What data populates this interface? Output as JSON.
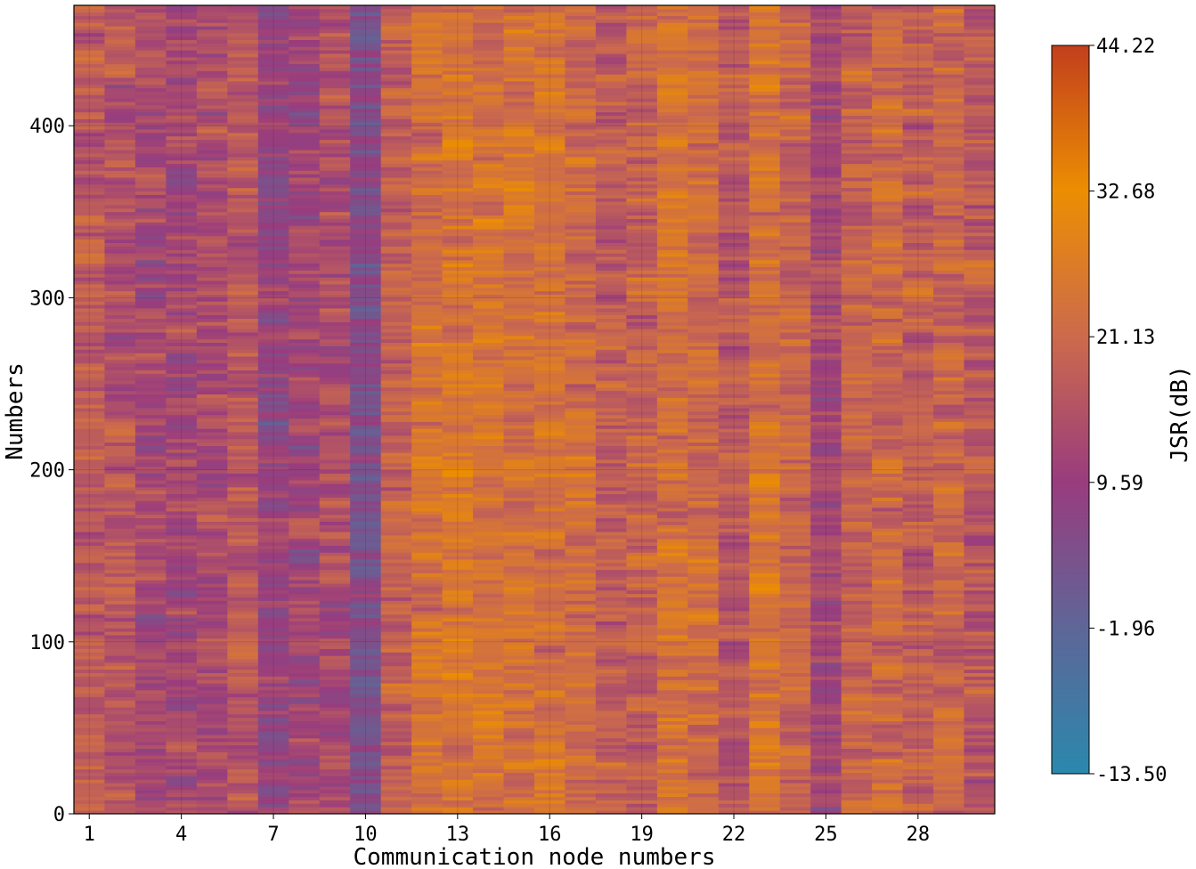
{
  "chart_data": {
    "type": "heatmap",
    "title": "",
    "xlabel": "Communication node numbers",
    "ylabel": "Numbers",
    "x_ticks": [
      "1",
      "4",
      "7",
      "10",
      "13",
      "16",
      "19",
      "22",
      "25",
      "28"
    ],
    "x_tick_values": [
      1,
      4,
      7,
      10,
      13,
      16,
      19,
      22,
      25,
      28
    ],
    "xlim": [
      0.5,
      30.5
    ],
    "y_ticks": [
      "0",
      "100",
      "200",
      "300",
      "400"
    ],
    "y_tick_values": [
      0,
      100,
      200,
      300,
      400
    ],
    "ylim": [
      0,
      470
    ],
    "grid": true,
    "node_count": 30,
    "sample_count": 470,
    "node_mean_jsr_db": [
      17.5,
      15.5,
      12.5,
      12.0,
      13.5,
      15.5,
      9.5,
      11.0,
      14.0,
      5.0,
      19.0,
      24.0,
      25.0,
      24.5,
      24.0,
      23.5,
      22.0,
      18.0,
      19.5,
      24.0,
      22.0,
      17.5,
      24.5,
      20.5,
      12.5,
      19.5,
      21.0,
      18.0,
      20.5,
      17.0
    ],
    "colorbar": {
      "label": "JSR(dB)",
      "min": -13.5,
      "max": 44.22,
      "ticks": [
        "44.22",
        "32.68",
        "21.13",
        "9.59",
        "-1.96",
        "-13.50"
      ],
      "tick_values": [
        44.22,
        32.68,
        21.13,
        9.59,
        -1.96,
        -13.5
      ],
      "colors": [
        "#2a88ad",
        "#5e6698",
        "#993c7e",
        "#cc6a4c",
        "#ec8e02",
        "#c23f1d"
      ]
    }
  }
}
